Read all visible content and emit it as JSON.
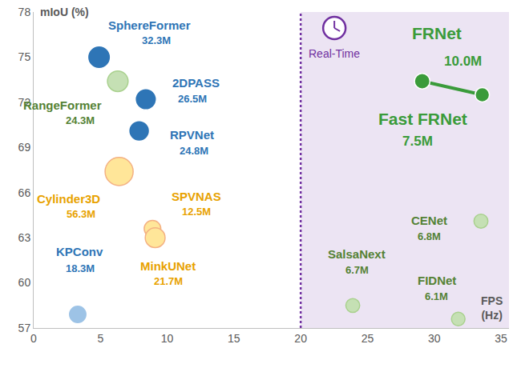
{
  "chart_data": {
    "type": "scatter",
    "xlabel": "FPS (Hz)",
    "ylabel": "mIoU (%)",
    "xlim": [
      0,
      35.6
    ],
    "xticks": [
      0,
      5,
      10,
      15,
      20,
      25,
      30,
      35
    ],
    "ylim": [
      57,
      78
    ],
    "yticks": [
      57,
      60,
      63,
      66,
      69,
      72,
      75,
      78
    ],
    "grid": false,
    "real_time_fps": 20,
    "region_label": "Real-Time",
    "series": [
      {
        "type": "scatter",
        "colors": [
          "#2e75b6",
          "#2e75b6",
          "#2e75b6",
          "#9dc3e6"
        ],
        "labels": [
          "SphereFormer",
          "2DPASS",
          "RPVNet",
          "KPConv"
        ],
        "x": [
          4.9,
          8.4,
          7.9,
          3.3
        ],
        "values": [
          75.0,
          72.2,
          70.1,
          57.9
        ],
        "sizes": [
          32.3,
          26.5,
          24.8,
          18.3
        ],
        "size_labels": [
          "32.3M",
          "26.5M",
          "24.8M",
          "18.3M"
        ]
      },
      {
        "type": "scatter",
        "colors": [
          "#ffe699",
          "#ffe699",
          "#ffe699"
        ],
        "labels": [
          "Cylinder3D",
          "SPVNAS",
          "MinkUNet"
        ],
        "x": [
          6.4,
          8.9,
          9.1
        ],
        "values": [
          67.4,
          63.6,
          63.0
        ],
        "sizes": [
          56.3,
          12.5,
          21.7
        ],
        "size_labels": [
          "56.3M",
          "12.5M",
          "21.7M"
        ]
      },
      {
        "type": "scatter",
        "colors": [
          "#c5e0b4",
          "#c5e0b4",
          "#c5e0b4",
          "#c5e0b4"
        ],
        "labels": [
          "RangeFormer",
          "CENet",
          "SalsaNext",
          "FIDNet"
        ],
        "x": [
          6.3,
          33.5,
          23.9,
          31.8
        ],
        "values": [
          73.4,
          64.1,
          58.5,
          57.6
        ],
        "sizes": [
          24.3,
          6.8,
          6.7,
          6.1
        ],
        "size_labels": [
          "24.3M",
          "6.8M",
          "6.7M",
          "6.1M"
        ]
      },
      {
        "type": "line",
        "color": "#3a9b3a",
        "labels": [
          "FRNet",
          "Fast FRNet"
        ],
        "x": [
          29.1,
          33.6
        ],
        "values": [
          73.4,
          72.5
        ],
        "sizes": [
          10.0,
          7.5
        ],
        "size_labels": [
          "10.0M",
          "7.5M"
        ]
      }
    ]
  }
}
